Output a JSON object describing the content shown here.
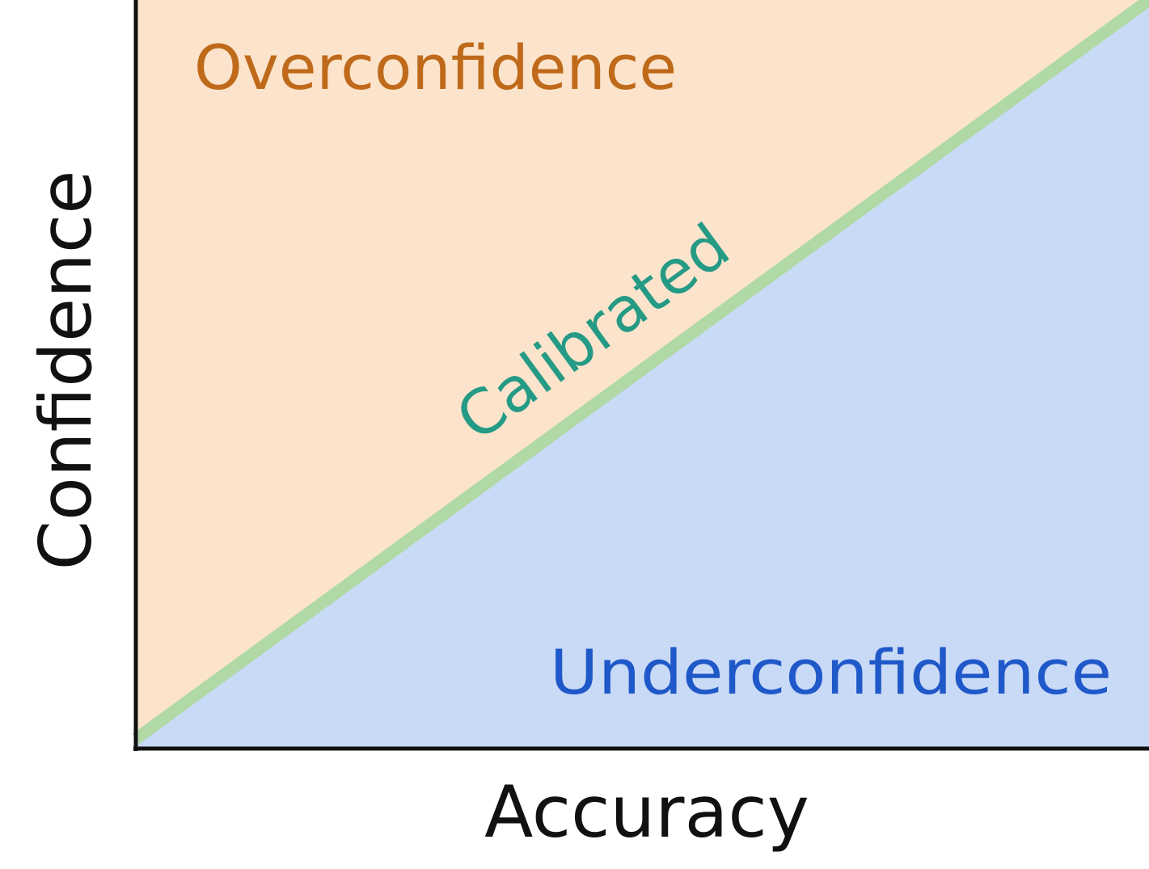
{
  "diagram": {
    "regions": {
      "over": {
        "label": "Overconfidence",
        "fill": "#fce4cc",
        "text_color": "#bf6a1a"
      },
      "under": {
        "label": "Underconfidence",
        "fill": "#c9daf6",
        "text_color": "#1f58c8"
      }
    },
    "diagonal": {
      "label": "Calibrated",
      "line_color": "#b0d9a5",
      "text_color": "#259a84"
    },
    "axes": {
      "x_label": "Accuracy",
      "y_label": "Confidence",
      "color": "#111111"
    }
  }
}
